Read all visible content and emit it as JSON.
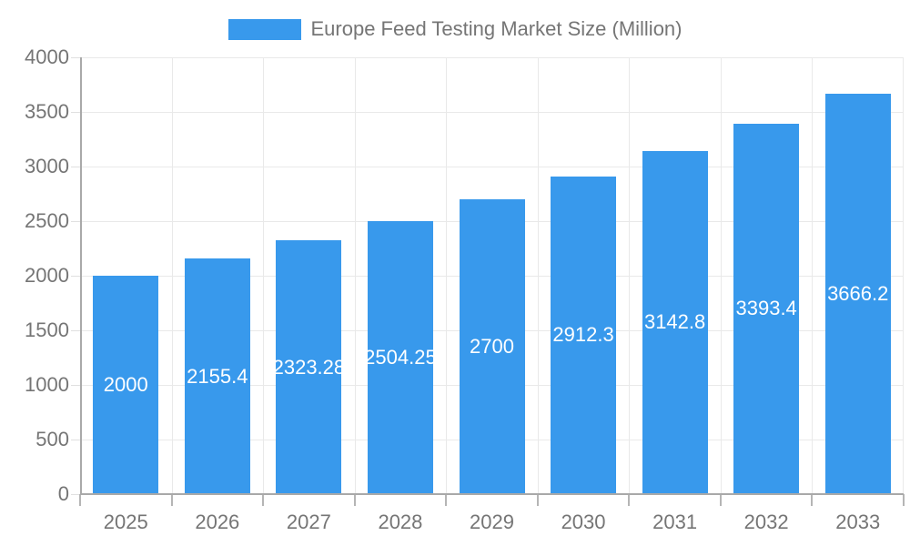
{
  "chart_data": {
    "type": "bar",
    "title": "Europe Feed Testing Market Size (Million)",
    "legend_position": "top",
    "categories": [
      "2025",
      "2026",
      "2027",
      "2028",
      "2029",
      "2030",
      "2031",
      "2032",
      "2033"
    ],
    "values": [
      2000,
      2155.4,
      2323.28,
      2504.25,
      2700,
      2912.3,
      3142.8,
      3393.4,
      3666.2
    ],
    "value_labels": [
      "2000",
      "2155.4",
      "2323.28",
      "2504.25",
      "2700",
      "2912.3",
      "3142.8",
      "3393.4",
      "3666.2"
    ],
    "xlabel": "",
    "ylabel": "",
    "ylim": [
      0,
      4000
    ],
    "ytick_step": 500,
    "ytick_labels": [
      "0",
      "500",
      "1000",
      "1500",
      "2000",
      "2500",
      "3000",
      "3500",
      "4000"
    ],
    "grid": true,
    "colors": {
      "bar": "#3899EC",
      "bar_value_label": "#FFFFFF",
      "axis_line": "#A9A9A9",
      "gridline": "#E9E9E9",
      "tick_label": "#757575",
      "legend_text": "#757575"
    }
  }
}
